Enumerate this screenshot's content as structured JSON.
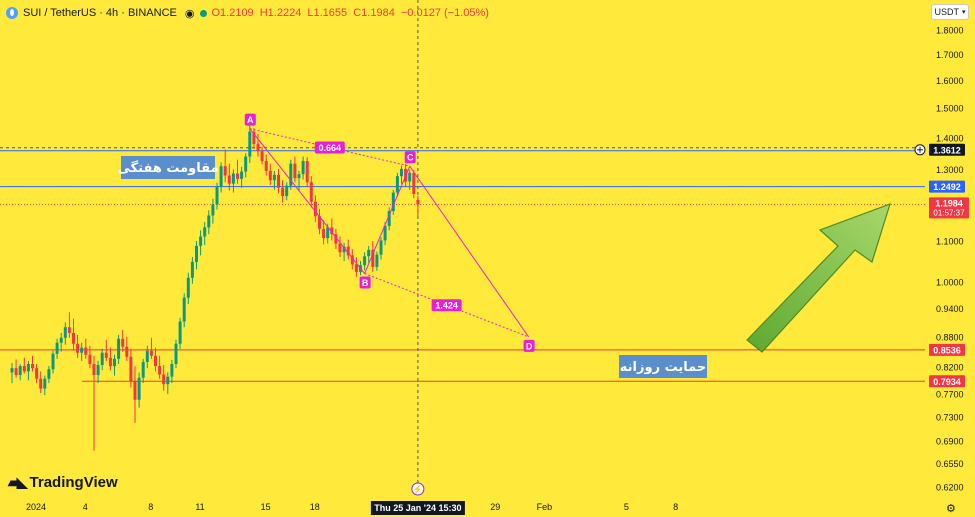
{
  "header": {
    "title": "SUI / TetherUS · 4h · BINANCE",
    "eye_icon": "eye-icon",
    "ohlc": {
      "open": "O1.2109",
      "high": "H1.2224",
      "low": "L1.1655",
      "close": "C1.1984",
      "change": "−0.0127 (−1.05%)"
    }
  },
  "currency_selector": "USDT",
  "watermark": "TradingView",
  "colors": {
    "background": "#FFEA3B",
    "up": "#089981",
    "down": "#F23645",
    "pattern": "#E91EDB",
    "arrow": "#7CC242",
    "label_bg": "#5B8ECC"
  },
  "chart_data": {
    "type": "candlestick",
    "symbol": "SUI / TetherUS",
    "interval": "4h",
    "exchange": "BINANCE",
    "ylim": [
      0.6,
      1.9
    ],
    "y_scale": "log",
    "y_ticks": [
      "1.8000",
      "1.7000",
      "1.6000",
      "1.5000",
      "1.4000",
      "1.3000",
      "1.2000",
      "1.1000",
      "1.0000",
      "0.9400",
      "0.8800",
      "0.8200",
      "0.7700",
      "0.7300",
      "0.6900",
      "0.6550",
      "0.6200"
    ],
    "x_ticks": [
      {
        "label": "2024",
        "x": 0
      },
      {
        "label": "4",
        "x": 12
      },
      {
        "label": "8",
        "x": 28
      },
      {
        "label": "11",
        "x": 40
      },
      {
        "label": "15",
        "x": 56
      },
      {
        "label": "18",
        "x": 68
      },
      {
        "label": "22",
        "x": 84
      },
      {
        "label": "29",
        "x": 112
      },
      {
        "label": "Feb",
        "x": 124
      },
      {
        "label": "5",
        "x": 144
      },
      {
        "label": "8",
        "x": 156
      }
    ],
    "crosshair_x_label": "Thu 25 Jan '24   15:30",
    "crosshair_y_label": "1.3612",
    "current_price": {
      "value": "1.1984",
      "countdown": "01:57:37"
    },
    "levels": [
      {
        "value": 1.3612,
        "label": "1.3612",
        "style": "dashed"
      },
      {
        "value": 1.2492,
        "label": "1.2492",
        "color": "#2962FF"
      },
      {
        "value": 0.8536,
        "label": "0.8536",
        "color": "#F23645"
      },
      {
        "value": 0.7934,
        "label": "0.7934",
        "color": "#F23645"
      }
    ],
    "text_labels": {
      "weekly_resistance": "مقاومت هفتگی",
      "daily_support": "حمایت روزانه"
    },
    "pattern": {
      "points": [
        {
          "name": "A",
          "x": 58,
          "y": 1.43
        },
        {
          "name": "B",
          "x": 86,
          "y": 1.02
        },
        {
          "name": "C",
          "x": 97,
          "y": 1.31
        },
        {
          "name": "D",
          "x": 126,
          "y": 0.88
        }
      ],
      "ratios": [
        {
          "label": "0.664",
          "between": "A-C"
        },
        {
          "label": "1.424",
          "between": "B-D"
        }
      ]
    },
    "candles": [
      {
        "o": 0.81,
        "h": 0.828,
        "l": 0.79,
        "c": 0.818
      },
      {
        "o": 0.818,
        "h": 0.835,
        "l": 0.8,
        "c": 0.805
      },
      {
        "o": 0.805,
        "h": 0.826,
        "l": 0.795,
        "c": 0.822
      },
      {
        "o": 0.822,
        "h": 0.838,
        "l": 0.808,
        "c": 0.812
      },
      {
        "o": 0.812,
        "h": 0.832,
        "l": 0.795,
        "c": 0.826
      },
      {
        "o": 0.826,
        "h": 0.842,
        "l": 0.812,
        "c": 0.818
      },
      {
        "o": 0.818,
        "h": 0.826,
        "l": 0.79,
        "c": 0.798
      },
      {
        "o": 0.798,
        "h": 0.812,
        "l": 0.772,
        "c": 0.78
      },
      {
        "o": 0.78,
        "h": 0.804,
        "l": 0.768,
        "c": 0.798
      },
      {
        "o": 0.798,
        "h": 0.822,
        "l": 0.79,
        "c": 0.816
      },
      {
        "o": 0.816,
        "h": 0.852,
        "l": 0.808,
        "c": 0.846
      },
      {
        "o": 0.846,
        "h": 0.876,
        "l": 0.836,
        "c": 0.868
      },
      {
        "o": 0.868,
        "h": 0.888,
        "l": 0.85,
        "c": 0.878
      },
      {
        "o": 0.878,
        "h": 0.91,
        "l": 0.864,
        "c": 0.9
      },
      {
        "o": 0.9,
        "h": 0.932,
        "l": 0.878,
        "c": 0.888
      },
      {
        "o": 0.888,
        "h": 0.918,
        "l": 0.852,
        "c": 0.866
      },
      {
        "o": 0.866,
        "h": 0.884,
        "l": 0.838,
        "c": 0.848
      },
      {
        "o": 0.848,
        "h": 0.868,
        "l": 0.832,
        "c": 0.858
      },
      {
        "o": 0.858,
        "h": 0.876,
        "l": 0.836,
        "c": 0.844
      },
      {
        "o": 0.844,
        "h": 0.862,
        "l": 0.818,
        "c": 0.826
      },
      {
        "o": 0.826,
        "h": 0.842,
        "l": 0.795,
        "c": 0.805
      },
      {
        "o": 0.805,
        "h": 0.832,
        "l": 0.79,
        "c": 0.824
      },
      {
        "o": 0.824,
        "h": 0.856,
        "l": 0.814,
        "c": 0.848
      },
      {
        "o": 0.848,
        "h": 0.874,
        "l": 0.832,
        "c": 0.838
      },
      {
        "o": 0.838,
        "h": 0.858,
        "l": 0.814,
        "c": 0.822
      },
      {
        "o": 0.822,
        "h": 0.844,
        "l": 0.804,
        "c": 0.836
      },
      {
        "o": 0.836,
        "h": 0.884,
        "l": 0.826,
        "c": 0.876
      },
      {
        "o": 0.876,
        "h": 0.894,
        "l": 0.85,
        "c": 0.86
      },
      {
        "o": 0.86,
        "h": 0.88,
        "l": 0.832,
        "c": 0.84
      },
      {
        "o": 0.84,
        "h": 0.856,
        "l": 0.782,
        "c": 0.794
      },
      {
        "o": 0.794,
        "h": 0.822,
        "l": 0.72,
        "c": 0.76
      },
      {
        "o": 0.76,
        "h": 0.81,
        "l": 0.746,
        "c": 0.8
      },
      {
        "o": 0.8,
        "h": 0.836,
        "l": 0.79,
        "c": 0.83
      },
      {
        "o": 0.83,
        "h": 0.862,
        "l": 0.818,
        "c": 0.852
      },
      {
        "o": 0.852,
        "h": 0.878,
        "l": 0.836,
        "c": 0.842
      },
      {
        "o": 0.842,
        "h": 0.858,
        "l": 0.812,
        "c": 0.822
      },
      {
        "o": 0.822,
        "h": 0.842,
        "l": 0.798,
        "c": 0.806
      },
      {
        "o": 0.806,
        "h": 0.824,
        "l": 0.776,
        "c": 0.788
      },
      {
        "o": 0.788,
        "h": 0.81,
        "l": 0.77,
        "c": 0.802
      },
      {
        "o": 0.802,
        "h": 0.834,
        "l": 0.79,
        "c": 0.826
      },
      {
        "o": 0.826,
        "h": 0.874,
        "l": 0.818,
        "c": 0.866
      },
      {
        "o": 0.866,
        "h": 0.92,
        "l": 0.856,
        "c": 0.912
      },
      {
        "o": 0.912,
        "h": 0.974,
        "l": 0.9,
        "c": 0.964
      },
      {
        "o": 0.964,
        "h": 1.022,
        "l": 0.95,
        "c": 1.01
      },
      {
        "o": 1.01,
        "h": 1.06,
        "l": 0.996,
        "c": 1.048
      },
      {
        "o": 1.048,
        "h": 1.1,
        "l": 1.03,
        "c": 1.088
      },
      {
        "o": 1.088,
        "h": 1.128,
        "l": 1.064,
        "c": 1.112
      },
      {
        "o": 1.112,
        "h": 1.15,
        "l": 1.09,
        "c": 1.136
      },
      {
        "o": 1.136,
        "h": 1.182,
        "l": 1.118,
        "c": 1.168
      },
      {
        "o": 1.168,
        "h": 1.214,
        "l": 1.146,
        "c": 1.198
      },
      {
        "o": 1.198,
        "h": 1.26,
        "l": 1.184,
        "c": 1.248
      },
      {
        "o": 1.248,
        "h": 1.322,
        "l": 1.232,
        "c": 1.31
      },
      {
        "o": 1.31,
        "h": 1.362,
        "l": 1.262,
        "c": 1.282
      },
      {
        "o": 1.282,
        "h": 1.318,
        "l": 1.238,
        "c": 1.258
      },
      {
        "o": 1.258,
        "h": 1.3,
        "l": 1.232,
        "c": 1.288
      },
      {
        "o": 1.288,
        "h": 1.33,
        "l": 1.258,
        "c": 1.272
      },
      {
        "o": 1.272,
        "h": 1.308,
        "l": 1.246,
        "c": 1.294
      },
      {
        "o": 1.294,
        "h": 1.35,
        "l": 1.276,
        "c": 1.34
      },
      {
        "o": 1.34,
        "h": 1.44,
        "l": 1.32,
        "c": 1.42
      },
      {
        "o": 1.42,
        "h": 1.432,
        "l": 1.364,
        "c": 1.38
      },
      {
        "o": 1.38,
        "h": 1.412,
        "l": 1.34,
        "c": 1.356
      },
      {
        "o": 1.356,
        "h": 1.372,
        "l": 1.316,
        "c": 1.326
      },
      {
        "o": 1.326,
        "h": 1.346,
        "l": 1.282,
        "c": 1.296
      },
      {
        "o": 1.296,
        "h": 1.318,
        "l": 1.254,
        "c": 1.268
      },
      {
        "o": 1.268,
        "h": 1.296,
        "l": 1.24,
        "c": 1.284
      },
      {
        "o": 1.284,
        "h": 1.302,
        "l": 1.23,
        "c": 1.246
      },
      {
        "o": 1.246,
        "h": 1.268,
        "l": 1.204,
        "c": 1.222
      },
      {
        "o": 1.222,
        "h": 1.262,
        "l": 1.21,
        "c": 1.252
      },
      {
        "o": 1.252,
        "h": 1.33,
        "l": 1.24,
        "c": 1.318
      },
      {
        "o": 1.318,
        "h": 1.34,
        "l": 1.262,
        "c": 1.274
      },
      {
        "o": 1.274,
        "h": 1.296,
        "l": 1.236,
        "c": 1.286
      },
      {
        "o": 1.286,
        "h": 1.34,
        "l": 1.27,
        "c": 1.326
      },
      {
        "o": 1.326,
        "h": 1.338,
        "l": 1.248,
        "c": 1.262
      },
      {
        "o": 1.262,
        "h": 1.28,
        "l": 1.19,
        "c": 1.206
      },
      {
        "o": 1.206,
        "h": 1.224,
        "l": 1.15,
        "c": 1.166
      },
      {
        "o": 1.166,
        "h": 1.186,
        "l": 1.118,
        "c": 1.132
      },
      {
        "o": 1.132,
        "h": 1.156,
        "l": 1.092,
        "c": 1.108
      },
      {
        "o": 1.108,
        "h": 1.146,
        "l": 1.094,
        "c": 1.136
      },
      {
        "o": 1.136,
        "h": 1.16,
        "l": 1.102,
        "c": 1.118
      },
      {
        "o": 1.118,
        "h": 1.132,
        "l": 1.08,
        "c": 1.094
      },
      {
        "o": 1.094,
        "h": 1.112,
        "l": 1.06,
        "c": 1.072
      },
      {
        "o": 1.072,
        "h": 1.096,
        "l": 1.05,
        "c": 1.086
      },
      {
        "o": 1.086,
        "h": 1.104,
        "l": 1.054,
        "c": 1.064
      },
      {
        "o": 1.064,
        "h": 1.08,
        "l": 1.03,
        "c": 1.042
      },
      {
        "o": 1.042,
        "h": 1.06,
        "l": 1.012,
        "c": 1.024
      },
      {
        "o": 1.024,
        "h": 1.05,
        "l": 1.016,
        "c": 1.04
      },
      {
        "o": 1.04,
        "h": 1.072,
        "l": 1.028,
        "c": 1.062
      },
      {
        "o": 1.062,
        "h": 1.088,
        "l": 1.046,
        "c": 1.078
      },
      {
        "o": 1.078,
        "h": 1.1,
        "l": 1.024,
        "c": 1.036
      },
      {
        "o": 1.036,
        "h": 1.074,
        "l": 1.026,
        "c": 1.066
      },
      {
        "o": 1.066,
        "h": 1.11,
        "l": 1.054,
        "c": 1.102
      },
      {
        "o": 1.102,
        "h": 1.15,
        "l": 1.09,
        "c": 1.14
      },
      {
        "o": 1.14,
        "h": 1.19,
        "l": 1.128,
        "c": 1.18
      },
      {
        "o": 1.18,
        "h": 1.24,
        "l": 1.17,
        "c": 1.232
      },
      {
        "o": 1.232,
        "h": 1.29,
        "l": 1.22,
        "c": 1.28
      },
      {
        "o": 1.28,
        "h": 1.312,
        "l": 1.258,
        "c": 1.302
      },
      {
        "o": 1.302,
        "h": 1.318,
        "l": 1.25,
        "c": 1.264
      },
      {
        "o": 1.264,
        "h": 1.3,
        "l": 1.24,
        "c": 1.29
      },
      {
        "o": 1.29,
        "h": 1.298,
        "l": 1.216,
        "c": 1.228
      },
      {
        "o": 1.2109,
        "h": 1.2224,
        "l": 1.1655,
        "c": 1.1984
      }
    ]
  }
}
